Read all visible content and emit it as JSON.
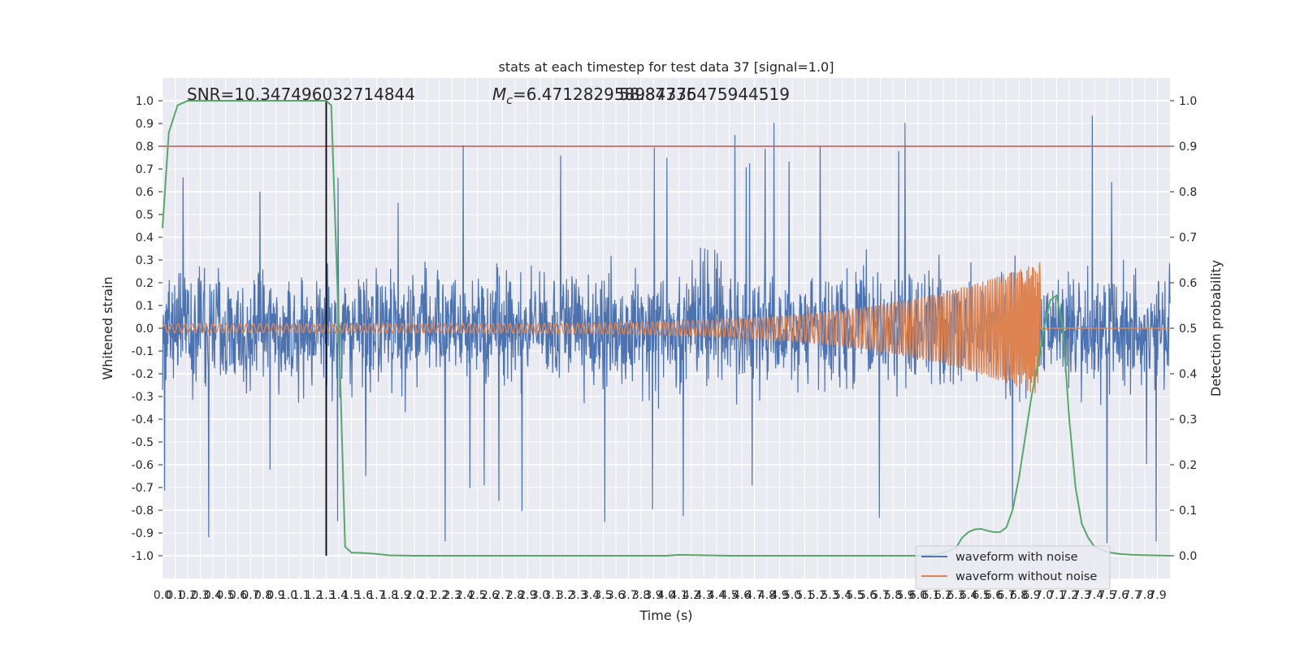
{
  "chart_data": {
    "type": "line",
    "title": "stats at each timestep for test data 37 [signal=1.0]",
    "xlabel": "Time (s)",
    "ylabel": "Whitened strain",
    "y2label": "Detection probability",
    "xlim": [
      0.0,
      8.0
    ],
    "ylim": [
      -1.1,
      1.1
    ],
    "y2lim": [
      -0.05,
      1.05
    ],
    "grid": true,
    "legend_position": "lower right",
    "x_tick_labels": [
      "0.0",
      "0.1",
      "0.2",
      "0.3",
      "0.4",
      "0.5",
      "0.6",
      "0.7",
      "0.8",
      "0.9",
      "1.0",
      "1.1",
      "1.2",
      "1.3",
      "1.4",
      "1.5",
      "1.6",
      "1.7",
      "1.8",
      "1.9",
      "2.0",
      "2.1",
      "2.2",
      "2.3",
      "2.4",
      "2.5",
      "2.6",
      "2.7",
      "2.8",
      "2.9",
      "3.0",
      "3.1",
      "3.2",
      "3.3",
      "3.4",
      "3.5",
      "3.6",
      "3.7",
      "3.8",
      "3.9",
      "4.0",
      "4.1",
      "4.2",
      "4.3",
      "4.4",
      "4.5",
      "4.6",
      "4.7",
      "4.8",
      "4.9",
      "5.0",
      "5.1",
      "5.2",
      "5.3",
      "5.4",
      "5.5",
      "5.6",
      "5.7",
      "5.8",
      "5.9",
      "6.0",
      "6.1",
      "6.2",
      "6.3",
      "6.4",
      "6.5",
      "6.6",
      "6.7",
      "6.8",
      "6.9",
      "7.0",
      "7.1",
      "7.2",
      "7.3",
      "7.4",
      "7.5",
      "7.6",
      "7.7",
      "7.8",
      "7.9"
    ],
    "y_tick_labels": [
      "-1.0",
      "-0.9",
      "-0.8",
      "-0.7",
      "-0.6",
      "-0.5",
      "-0.4",
      "-0.3",
      "-0.2",
      "-0.1",
      "0.0",
      "0.1",
      "0.2",
      "0.3",
      "0.4",
      "0.5",
      "0.6",
      "0.7",
      "0.8",
      "0.9",
      "1.0"
    ],
    "y2_tick_labels": [
      "0.0",
      "0.1",
      "0.2",
      "0.3",
      "0.4",
      "0.5",
      "0.6",
      "0.7",
      "0.8",
      "0.9",
      "1.0"
    ],
    "annotations": {
      "snr": "SNR=10.347496032714844",
      "mc_prefix": "M",
      "mc_sub": "c",
      "mc_value": "=6.471282958984375",
      "overlap": "58.87736475944519"
    },
    "threshold": 0.9,
    "marker_time": 1.3,
    "series": [
      {
        "name": "waveform with noise",
        "color": "#4c72b0",
        "description": "noisy whitened strain, amplitude envelope roughly ±0.3 with spikes up to ±0.98"
      },
      {
        "name": "waveform without noise",
        "color": "#dd8452",
        "chirp": {
          "start": 0.0,
          "merger": 6.97,
          "amp_start": 0.02,
          "amp_peak": 0.3
        }
      },
      {
        "name": "detection probability",
        "color": "#55a868",
        "x": [
          0.0,
          0.05,
          0.12,
          0.2,
          0.4,
          0.6,
          0.8,
          1.0,
          1.2,
          1.3,
          1.34,
          1.4,
          1.45,
          1.5,
          1.6,
          1.7,
          1.8,
          2.0,
          2.5,
          3.0,
          3.5,
          4.0,
          4.1,
          4.5,
          5.0,
          5.5,
          6.0,
          6.1,
          6.2,
          6.3,
          6.35,
          6.4,
          6.45,
          6.5,
          6.55,
          6.6,
          6.65,
          6.7,
          6.75,
          6.8,
          6.85,
          6.9,
          6.95,
          7.0,
          7.05,
          7.1,
          7.15,
          7.2,
          7.25,
          7.3,
          7.35,
          7.4,
          7.5,
          7.6,
          7.7,
          8.0
        ],
        "y": [
          0.72,
          0.93,
          0.99,
          1.0,
          1.0,
          1.0,
          1.0,
          1.0,
          1.0,
          1.0,
          0.99,
          0.5,
          0.02,
          0.007,
          0.006,
          0.004,
          0.001,
          0.0,
          0.0,
          0.0,
          0.0,
          0.0,
          0.002,
          0.0,
          0.0,
          0.0,
          0.0,
          0.002,
          0.006,
          0.017,
          0.04,
          0.052,
          0.058,
          0.059,
          0.055,
          0.052,
          0.052,
          0.062,
          0.1,
          0.17,
          0.26,
          0.35,
          0.42,
          0.5,
          0.562,
          0.572,
          0.5,
          0.3,
          0.15,
          0.07,
          0.04,
          0.02,
          0.008,
          0.004,
          0.002,
          0.0
        ]
      }
    ],
    "colors": {
      "background": "#eaeaf2",
      "grid": "#ffffff",
      "threshold": "#c44e52",
      "marker": "#000000"
    }
  }
}
